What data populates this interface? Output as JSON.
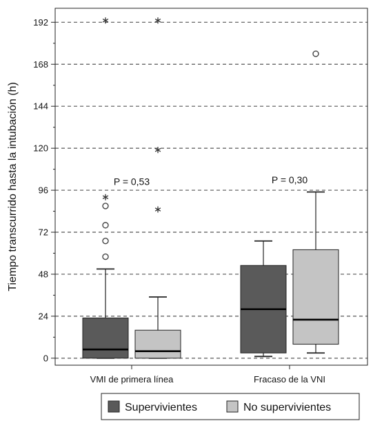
{
  "chart_data": {
    "type": "boxplot",
    "ylabel": "Tiempo transcurrido hasta la intubación (h)",
    "xlabel": "",
    "ylim": [
      -4,
      200
    ],
    "yticks": [
      0,
      24,
      48,
      72,
      96,
      120,
      144,
      168,
      192
    ],
    "ytick_labels": [
      "0",
      "24",
      "48",
      "72",
      "96",
      "120",
      "144",
      "168",
      "192"
    ],
    "categories": [
      "VMI de primera línea",
      "Fracaso de la VNI"
    ],
    "grid": "horizontal-dashed",
    "legend_position": "bottom",
    "series": [
      {
        "name": "Supervivientes",
        "color": "#5a5a5a",
        "boxes": [
          {
            "min": 0,
            "q1": 0,
            "median": 5,
            "q3": 23,
            "max": 51,
            "outliers": [
              58,
              67,
              76,
              87
            ],
            "extremes": [
              92,
              193
            ]
          },
          {
            "min": 1,
            "q1": 3,
            "median": 28,
            "q3": 53,
            "max": 67,
            "outliers": [],
            "extremes": []
          }
        ]
      },
      {
        "name": "No supervivientes",
        "color": "#c4c4c4",
        "boxes": [
          {
            "min": 0,
            "q1": 0,
            "median": 4,
            "q3": 16,
            "max": 35,
            "outliers": [],
            "extremes": [
              85,
              119,
              193
            ]
          },
          {
            "min": 3,
            "q1": 8,
            "median": 22,
            "q3": 62,
            "max": 95,
            "outliers": [
              174
            ],
            "extremes": []
          }
        ]
      }
    ],
    "annotations": [
      {
        "text": "P = 0,53",
        "x": "VMI de primera línea",
        "y": 101
      },
      {
        "text": "P = 0,30",
        "x": "Fracaso de la VNI",
        "y": 102
      }
    ]
  }
}
